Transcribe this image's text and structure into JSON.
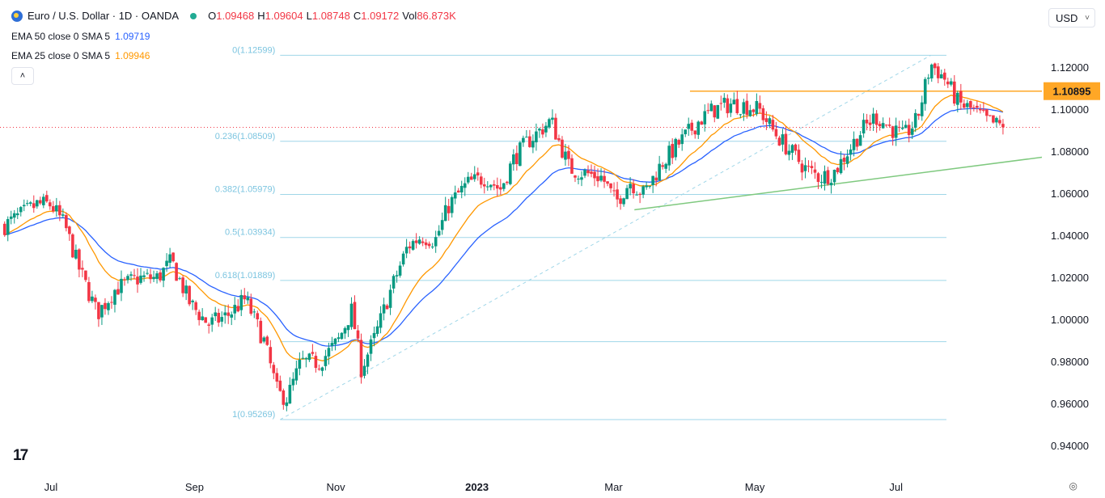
{
  "header": {
    "title": "Euro / U.S. Dollar · 1D · OANDA",
    "open_label": "O",
    "open": "1.09468",
    "high_label": "H",
    "high": "1.09604",
    "low_label": "L",
    "low": "1.08748",
    "close_label": "C",
    "close": "1.09172",
    "vol_label": "Vol",
    "vol": "86.873K"
  },
  "indicators": [
    {
      "label": "EMA 50 close 0 SMA 5",
      "value": "1.09719",
      "color": "#2962ff"
    },
    {
      "label": "EMA 25 close 0 SMA 5",
      "value": "1.09946",
      "color": "#ff9800"
    }
  ],
  "collapse_glyph": "˄",
  "currency": {
    "value": "USD",
    "chevron": "˅"
  },
  "brand": "17",
  "settings_glyph": "◎",
  "colors": {
    "up": "#089981",
    "down": "#f23645",
    "ema50": "#2962ff",
    "ema25": "#ff9800",
    "fib": "#9fd6e8",
    "trend": "#7fc97f",
    "resistance": "#ffa726"
  },
  "chart_data": {
    "type": "candlestick",
    "symbol": "EURUSD",
    "ylim": [
      0.93,
      1.135
    ],
    "y_ticks": [
      "1.12000",
      "1.10000",
      "1.08000",
      "1.06000",
      "1.04000",
      "1.02000",
      "1.00000",
      "0.98000",
      "0.96000",
      "0.94000"
    ],
    "y_tick_values": [
      1.12,
      1.1,
      1.08,
      1.06,
      1.04,
      1.02,
      1.0,
      0.98,
      0.96,
      0.94
    ],
    "x_ticks": [
      {
        "label": "Jul",
        "day": 6,
        "bold": false
      },
      {
        "label": "Sep",
        "day": 68,
        "bold": false
      },
      {
        "label": "Nov",
        "day": 129,
        "bold": false
      },
      {
        "label": "2023",
        "day": 190,
        "bold": true
      },
      {
        "label": "Mar",
        "day": 249,
        "bold": false
      },
      {
        "label": "May",
        "day": 310,
        "bold": false
      },
      {
        "label": "Jul",
        "day": 371,
        "bold": false
      }
    ],
    "day_range": [
      -16,
      434
    ],
    "last_day": 418,
    "last_close": 1.09172,
    "resistance": {
      "value": 1.10895,
      "label": "1.10895",
      "from_day": 282
    },
    "trendline": {
      "from": [
        258,
        1.0525
      ],
      "to": [
        434,
        1.0775
      ]
    },
    "fib_anchor_line": {
      "from": [
        105,
        0.95269
      ],
      "to": [
        386,
        1.12599
      ]
    },
    "fib_levels": [
      {
        "label": "0(1.12599)",
        "value": 1.12599
      },
      {
        "label": "0.236(1.08509)",
        "value": 1.08509
      },
      {
        "label": "0.382(1.05979)",
        "value": 1.05979
      },
      {
        "label": "0.5(1.03934)",
        "value": 1.03934
      },
      {
        "label": "0.618(1.01889)",
        "value": 1.01889
      },
      {
        "label": "",
        "value": 0.98978
      },
      {
        "label": "1(0.95269)",
        "value": 0.95269
      }
    ],
    "fib_range_days": [
      105,
      386
    ],
    "price_path": [
      [
        -14,
        1.045
      ],
      [
        0,
        1.055
      ],
      [
        6,
        1.055
      ],
      [
        12,
        1.045
      ],
      [
        18,
        1.025
      ],
      [
        26,
        1.003
      ],
      [
        34,
        1.015
      ],
      [
        44,
        1.02
      ],
      [
        52,
        1.02
      ],
      [
        58,
        1.028
      ],
      [
        66,
        1.008
      ],
      [
        74,
        0.998
      ],
      [
        82,
        1.002
      ],
      [
        90,
        1.01
      ],
      [
        98,
        0.99
      ],
      [
        104,
        0.965
      ],
      [
        108,
        0.963
      ],
      [
        114,
        0.98
      ],
      [
        122,
        0.98
      ],
      [
        130,
        0.99
      ],
      [
        136,
        1.005
      ],
      [
        140,
        0.977
      ],
      [
        146,
        0.992
      ],
      [
        152,
        1.012
      ],
      [
        160,
        1.035
      ],
      [
        166,
        1.04
      ],
      [
        172,
        1.038
      ],
      [
        178,
        1.055
      ],
      [
        186,
        1.065
      ],
      [
        194,
        1.068
      ],
      [
        200,
        1.062
      ],
      [
        206,
        1.077
      ],
      [
        212,
        1.085
      ],
      [
        218,
        1.091
      ],
      [
        222,
        1.095
      ],
      [
        230,
        1.072
      ],
      [
        236,
        1.07
      ],
      [
        244,
        1.068
      ],
      [
        250,
        1.056
      ],
      [
        256,
        1.066
      ],
      [
        262,
        1.06
      ],
      [
        270,
        1.075
      ],
      [
        278,
        1.085
      ],
      [
        286,
        1.095
      ],
      [
        292,
        1.1
      ],
      [
        300,
        1.103
      ],
      [
        306,
        1.102
      ],
      [
        312,
        1.1
      ],
      [
        318,
        1.09
      ],
      [
        324,
        1.082
      ],
      [
        332,
        1.072
      ],
      [
        338,
        1.068
      ],
      [
        344,
        1.07
      ],
      [
        350,
        1.08
      ],
      [
        356,
        1.09
      ],
      [
        362,
        1.097
      ],
      [
        368,
        1.092
      ],
      [
        374,
        1.087
      ],
      [
        380,
        1.095
      ],
      [
        386,
        1.122
      ],
      [
        392,
        1.115
      ],
      [
        398,
        1.103
      ],
      [
        404,
        1.1
      ],
      [
        410,
        1.095
      ],
      [
        414,
        1.093
      ],
      [
        418,
        1.09172
      ]
    ]
  }
}
